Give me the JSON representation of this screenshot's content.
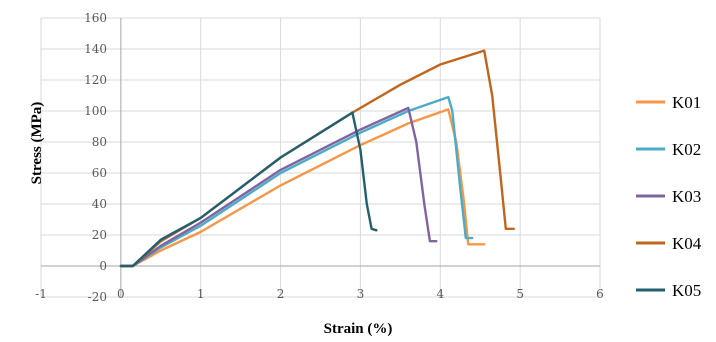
{
  "chart_data": {
    "type": "line",
    "xlabel": "Strain (%)",
    "ylabel": "Stress (MPa)",
    "xlim": [
      -1,
      6
    ],
    "ylim": [
      -20,
      160
    ],
    "xticks": [
      -1,
      0,
      1,
      2,
      3,
      4,
      5,
      6
    ],
    "yticks": [
      -20,
      0,
      20,
      40,
      60,
      80,
      100,
      120,
      140,
      160
    ],
    "grid": true,
    "legend_position": "right",
    "series": [
      {
        "name": "K01",
        "color": "#f79646",
        "x": [
          0,
          0.15,
          0.5,
          1.0,
          2.0,
          3.0,
          3.6,
          4.1,
          4.2,
          4.3,
          4.35,
          4.55
        ],
        "y": [
          0,
          0,
          10,
          22,
          52,
          78,
          92,
          101,
          80,
          40,
          14,
          14
        ]
      },
      {
        "name": "K02",
        "color": "#4bacc6",
        "x": [
          0,
          0.15,
          0.5,
          1.0,
          2.0,
          3.0,
          3.6,
          4.1,
          4.15,
          4.25,
          4.32,
          4.4
        ],
        "y": [
          0,
          0,
          12,
          26,
          60,
          86,
          100,
          109,
          100,
          50,
          18,
          18
        ]
      },
      {
        "name": "K03",
        "color": "#8064a2",
        "x": [
          0,
          0.15,
          0.5,
          1.0,
          2.0,
          3.0,
          3.6,
          3.7,
          3.8,
          3.87,
          3.95
        ],
        "y": [
          0,
          0,
          13,
          28,
          62,
          88,
          102,
          80,
          40,
          16,
          16
        ]
      },
      {
        "name": "K04",
        "color": "#c0651d",
        "x": [
          0,
          0.15,
          0.5,
          1.0,
          2.0,
          2.9,
          3.5,
          4.0,
          4.55,
          4.65,
          4.75,
          4.82,
          4.92
        ],
        "y": [
          0,
          0,
          16,
          31,
          70,
          99,
          117,
          130,
          139,
          110,
          60,
          24,
          24
        ]
      },
      {
        "name": "K05",
        "color": "#235f70",
        "x": [
          0,
          0.15,
          0.5,
          1.0,
          2.0,
          2.9,
          3.0,
          3.08,
          3.14,
          3.2
        ],
        "y": [
          0,
          0,
          17,
          31,
          70,
          99,
          75,
          40,
          24,
          23
        ]
      }
    ]
  }
}
